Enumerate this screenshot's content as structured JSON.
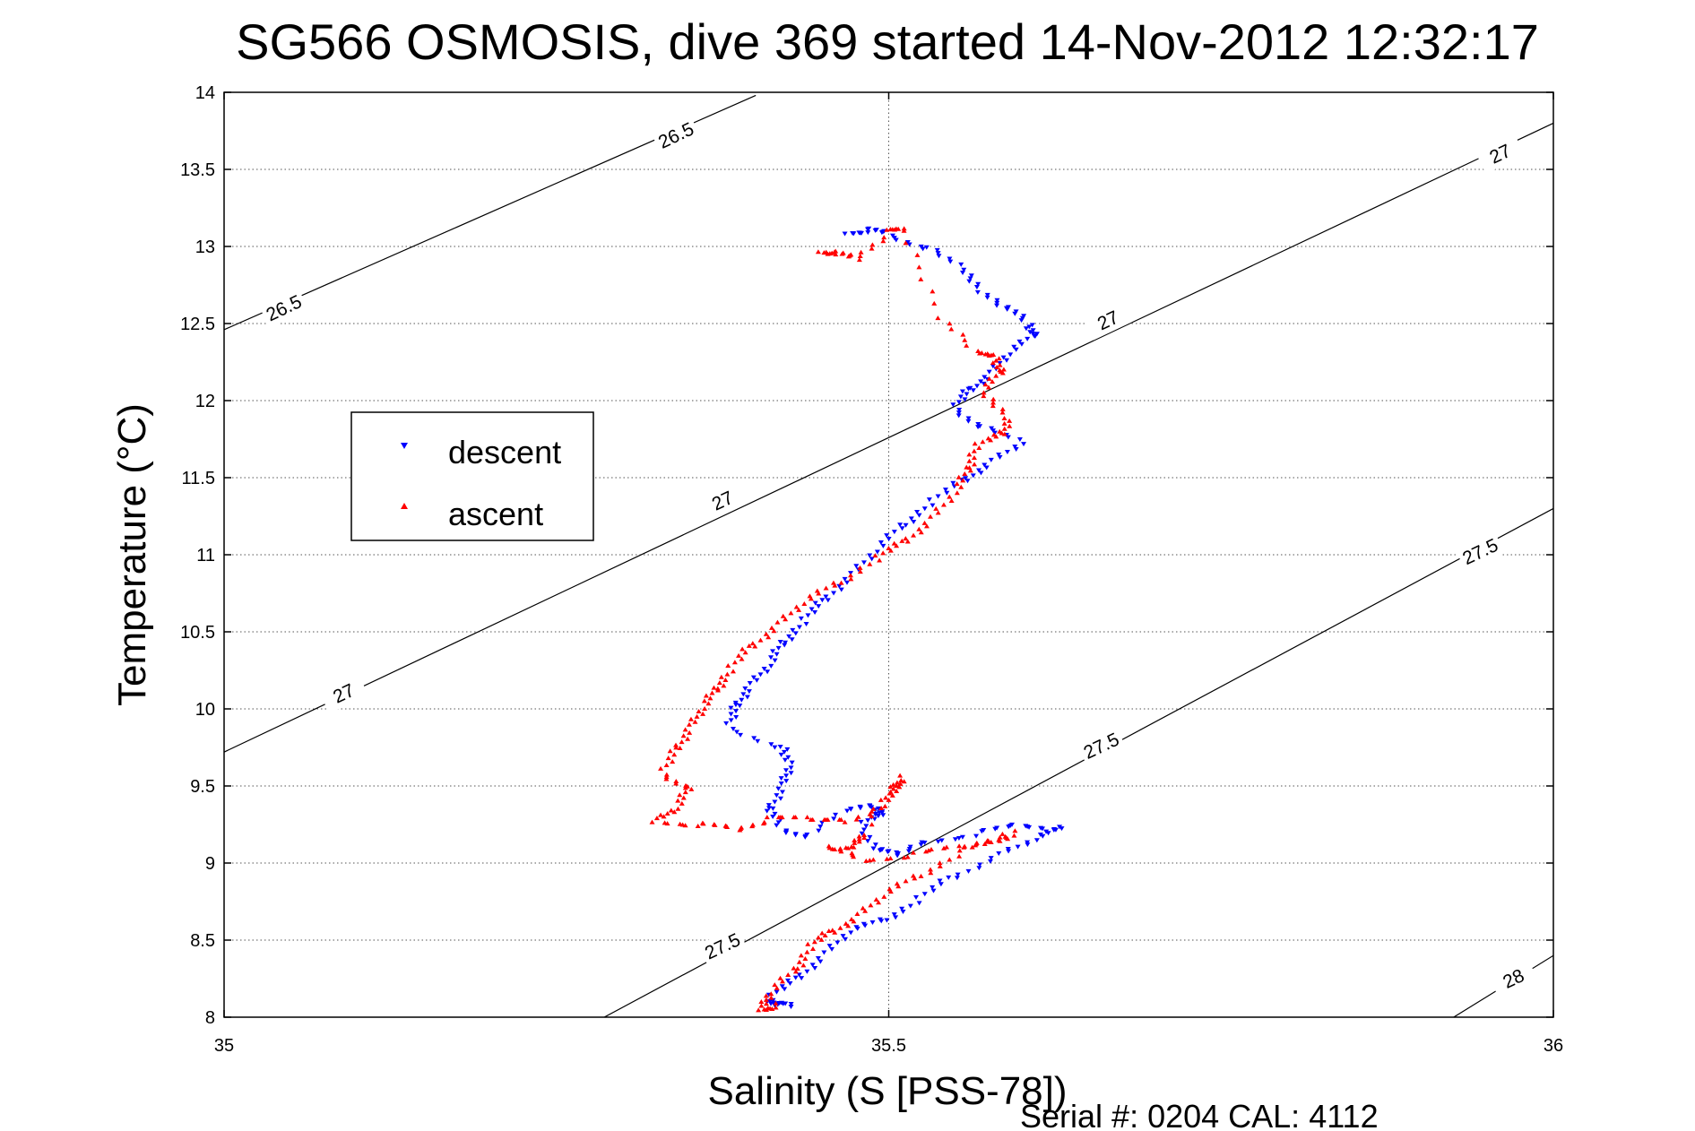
{
  "chart_data": {
    "type": "scatter",
    "title": "SG566 OSMOSIS, dive 369 started 14-Nov-2012 12:32:17",
    "xlabel": "Salinity (S [PSS-78])",
    "ylabel": "Temperature (°C)",
    "footer": "Serial #: 0204  CAL: 4112",
    "xlim": [
      35,
      36
    ],
    "ylim": [
      8,
      14
    ],
    "x_ticks": [
      "35",
      "35.5",
      "36"
    ],
    "y_ticks": [
      "8",
      "8.5",
      "9",
      "9.5",
      "10",
      "10.5",
      "11",
      "11.5",
      "12",
      "12.5",
      "13",
      "13.5",
      "14"
    ],
    "grid": "dotted",
    "legend_position": "left",
    "colors": {
      "descent": "#0000ff",
      "ascent": "#ff0000",
      "contour": "#000000"
    },
    "series": [
      {
        "name": "descent",
        "marker": "triangle-down",
        "color": "#0000ff",
        "points": [
          [
            35.47,
            13.1
          ],
          [
            35.485,
            13.11
          ],
          [
            35.5,
            13.08
          ],
          [
            35.53,
            12.98
          ],
          [
            35.555,
            12.85
          ],
          [
            35.57,
            12.72
          ],
          [
            35.59,
            12.6
          ],
          [
            35.605,
            12.5
          ],
          [
            35.61,
            12.42
          ],
          [
            35.59,
            12.3
          ],
          [
            35.575,
            12.17
          ],
          [
            35.56,
            12.07
          ],
          [
            35.55,
            11.95
          ],
          [
            35.57,
            11.82
          ],
          [
            35.6,
            11.72
          ],
          [
            35.575,
            11.6
          ],
          [
            35.555,
            11.48
          ],
          [
            35.53,
            11.33
          ],
          [
            35.51,
            11.18
          ],
          [
            35.49,
            11.02
          ],
          [
            35.47,
            10.86
          ],
          [
            35.45,
            10.7
          ],
          [
            35.435,
            10.56
          ],
          [
            35.42,
            10.42
          ],
          [
            35.41,
            10.28
          ],
          [
            35.395,
            10.15
          ],
          [
            35.385,
            10.02
          ],
          [
            35.38,
            9.88
          ],
          [
            35.42,
            9.74
          ],
          [
            35.425,
            9.62
          ],
          [
            35.42,
            9.5
          ],
          [
            35.41,
            9.35
          ],
          [
            35.42,
            9.22
          ],
          [
            35.44,
            9.17
          ],
          [
            35.47,
            9.35
          ],
          [
            35.49,
            9.38
          ],
          [
            35.495,
            9.32
          ],
          [
            35.48,
            9.25
          ],
          [
            35.49,
            9.08
          ],
          [
            35.505,
            9.05
          ],
          [
            35.53,
            9.15
          ],
          [
            35.57,
            9.2
          ],
          [
            35.6,
            9.25
          ],
          [
            35.63,
            9.22
          ],
          [
            35.61,
            9.15
          ],
          [
            35.58,
            9.05
          ],
          [
            35.545,
            8.9
          ],
          [
            35.52,
            8.75
          ],
          [
            35.495,
            8.62
          ],
          [
            35.47,
            8.55
          ],
          [
            35.45,
            8.4
          ],
          [
            35.43,
            8.25
          ],
          [
            35.41,
            8.12
          ],
          [
            35.415,
            8.08
          ],
          [
            35.425,
            8.07
          ]
        ]
      },
      {
        "name": "ascent",
        "marker": "triangle-up",
        "color": "#ff0000",
        "points": [
          [
            35.45,
            12.98
          ],
          [
            35.46,
            12.96
          ],
          [
            35.475,
            12.92
          ],
          [
            35.5,
            13.09
          ],
          [
            35.51,
            13.1
          ],
          [
            35.54,
            12.55
          ],
          [
            35.57,
            12.3
          ],
          [
            35.58,
            12.28
          ],
          [
            35.585,
            12.18
          ],
          [
            35.57,
            12.05
          ],
          [
            35.59,
            11.9
          ],
          [
            35.585,
            11.78
          ],
          [
            35.565,
            11.7
          ],
          [
            35.56,
            11.55
          ],
          [
            35.55,
            11.4
          ],
          [
            35.53,
            11.22
          ],
          [
            35.51,
            11.08
          ],
          [
            35.49,
            10.97
          ],
          [
            35.46,
            10.8
          ],
          [
            35.435,
            10.68
          ],
          [
            35.415,
            10.54
          ],
          [
            35.395,
            10.4
          ],
          [
            35.38,
            10.25
          ],
          [
            35.37,
            10.12
          ],
          [
            35.36,
            10.0
          ],
          [
            35.35,
            9.88
          ],
          [
            35.34,
            9.74
          ],
          [
            35.33,
            9.58
          ],
          [
            35.35,
            9.48
          ],
          [
            35.34,
            9.35
          ],
          [
            35.325,
            9.28
          ],
          [
            35.36,
            9.25
          ],
          [
            35.385,
            9.22
          ],
          [
            35.41,
            9.28
          ],
          [
            35.44,
            9.28
          ],
          [
            35.47,
            9.28
          ],
          [
            35.5,
            9.4
          ],
          [
            35.505,
            9.5
          ],
          [
            35.51,
            9.55
          ],
          [
            35.48,
            9.18
          ],
          [
            35.475,
            9.12
          ],
          [
            35.455,
            9.1
          ],
          [
            35.48,
            9.02
          ],
          [
            35.52,
            9.05
          ],
          [
            35.555,
            9.1
          ],
          [
            35.58,
            9.15
          ],
          [
            35.595,
            9.2
          ],
          [
            35.55,
            9.05
          ],
          [
            35.52,
            8.9
          ],
          [
            35.495,
            8.78
          ],
          [
            35.475,
            8.65
          ],
          [
            35.455,
            8.55
          ],
          [
            35.44,
            8.45
          ],
          [
            35.43,
            8.3
          ],
          [
            35.41,
            8.15
          ],
          [
            35.405,
            8.06
          ],
          [
            35.415,
            8.08
          ]
        ]
      }
    ],
    "contours": [
      {
        "label": "26.5",
        "x": [
          35,
          35.4
        ],
        "y": [
          12.46,
          13.98
        ]
      },
      {
        "label": "27",
        "x": [
          35,
          36
        ],
        "y": [
          9.72,
          13.8
        ]
      },
      {
        "label": "27.5",
        "x": [
          35.286,
          36
        ],
        "y": [
          8,
          11.3
        ]
      },
      {
        "label": "28",
        "x": [
          35.925,
          36
        ],
        "y": [
          8,
          8.4
        ]
      }
    ],
    "contour_labels": [
      {
        "text": "26.5",
        "x": 35.34,
        "y": 13.72
      },
      {
        "text": "26.5",
        "x": 35.045,
        "y": 12.6
      },
      {
        "text": "27",
        "x": 35.96,
        "y": 13.6
      },
      {
        "text": "27",
        "x": 35.665,
        "y": 12.52
      },
      {
        "text": "27",
        "x": 35.375,
        "y": 11.35
      },
      {
        "text": "27",
        "x": 35.09,
        "y": 10.1
      },
      {
        "text": "27.5",
        "x": 35.945,
        "y": 11.02
      },
      {
        "text": "27.5",
        "x": 35.66,
        "y": 9.76
      },
      {
        "text": "27.5",
        "x": 35.375,
        "y": 8.46
      },
      {
        "text": "28",
        "x": 35.97,
        "y": 8.25
      }
    ]
  }
}
